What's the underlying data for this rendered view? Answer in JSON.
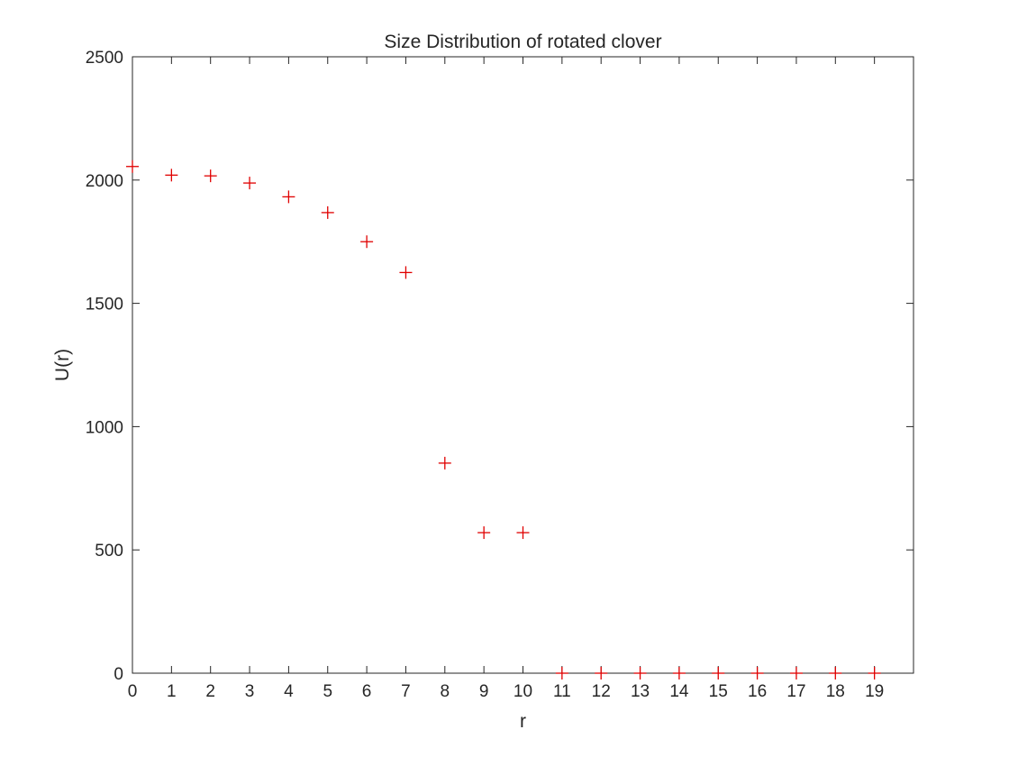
{
  "chart_data": {
    "type": "scatter",
    "title": "Size Distribution of rotated clover",
    "xlabel": "r",
    "ylabel": "U(r)",
    "xlim": [
      0,
      20
    ],
    "ylim": [
      0,
      2500
    ],
    "xticks": [
      0,
      1,
      2,
      3,
      4,
      5,
      6,
      7,
      8,
      9,
      10,
      11,
      12,
      13,
      14,
      15,
      16,
      17,
      18,
      19
    ],
    "yticks": [
      0,
      500,
      1000,
      1500,
      2000,
      2500
    ],
    "marker": "+",
    "grid": false,
    "box": true,
    "colors": {
      "marker": "#e00000",
      "axes": "#262626",
      "background": "#ffffff"
    },
    "x": [
      0,
      1,
      2,
      3,
      4,
      5,
      6,
      7,
      8,
      9,
      10,
      11,
      12,
      13,
      14,
      15,
      16,
      17,
      18,
      19
    ],
    "y": [
      2055,
      2020,
      2017,
      1988,
      1932,
      1868,
      1750,
      1625,
      852,
      570,
      570,
      0,
      0,
      0,
      0,
      0,
      0,
      0,
      0,
      0
    ]
  }
}
